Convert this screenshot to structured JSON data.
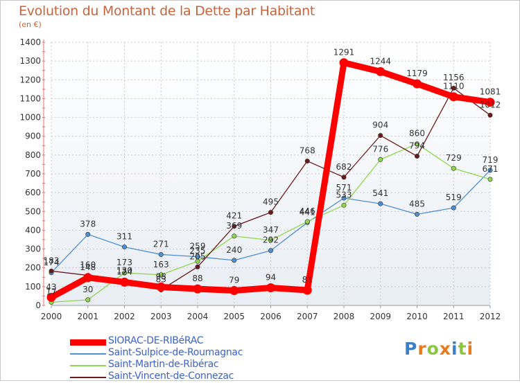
{
  "header": {
    "title": "Evolution du Montant de la Dette par Habitant",
    "unit": "(en €)"
  },
  "logo": {
    "letters": [
      "P",
      "r",
      "o",
      "x",
      "i",
      "t",
      "i"
    ],
    "colors": [
      "#3a7fc8",
      "#e87a1e",
      "#8cc63e",
      "#e87a1e",
      "#3a7fc8",
      "#8cc63e",
      "#e87a1e"
    ]
  },
  "chart_data": {
    "type": "line",
    "title": "Evolution du Montant de la Dette par Habitant",
    "subtitle": "(en €)",
    "categories": [
      "2000",
      "2001",
      "2002",
      "2003",
      "2004",
      "2005",
      "2006",
      "2007",
      "2008",
      "2009",
      "2010",
      "2011",
      "2012"
    ],
    "ylim": [
      0,
      1400
    ],
    "yticks": [
      0,
      100,
      200,
      300,
      400,
      500,
      600,
      700,
      800,
      900,
      1000,
      1100,
      1200,
      1300,
      1400
    ],
    "grid": true,
    "legend_position": "bottom-left",
    "series": [
      {
        "name": "SIORAC-DE-RIBéRAC",
        "color": "#ff0000",
        "values": [
          43,
          148,
          124,
          98,
          88,
          79,
          94,
          81,
          1291,
          1244,
          1179,
          1110,
          1081
        ]
      },
      {
        "name": "Saint-Sulpice-de-Roumagnac",
        "color": "#4f8fd0",
        "values": [
          174,
          378,
          311,
          271,
          259,
          240,
          292,
          441,
          571,
          541,
          485,
          519,
          719
        ]
      },
      {
        "name": "Saint-Martin-de-Ribérac",
        "color": "#8fd64f",
        "values": [
          17,
          30,
          173,
          163,
          235,
          369,
          347,
          446,
          533,
          776,
          860,
          729,
          671
        ]
      },
      {
        "name": "Saint-Vincent-de-Connezac",
        "color": "#6b1a1a",
        "values": [
          183,
          160,
          130,
          83,
          205,
          421,
          495,
          768,
          682,
          904,
          794,
          1156,
          1012
        ]
      }
    ]
  }
}
